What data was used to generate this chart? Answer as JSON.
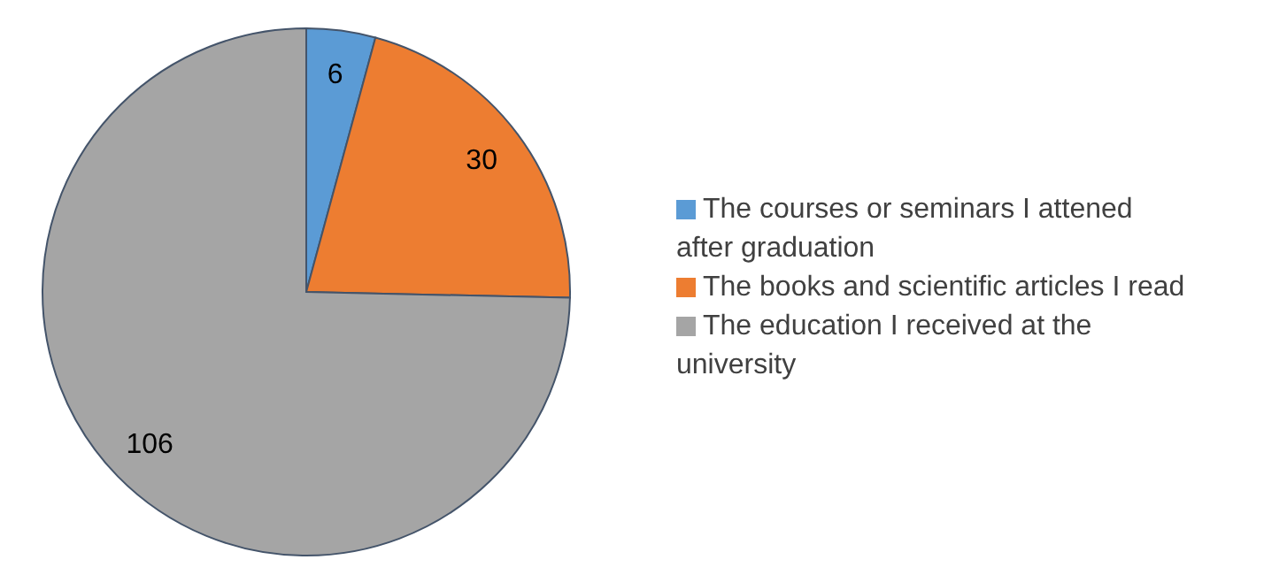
{
  "chart_data": {
    "type": "pie",
    "categories": [
      "The courses or seminars I attened after graduation",
      "The books and scientific articles I read",
      "The education I received at the university"
    ],
    "values": [
      6,
      30,
      106
    ],
    "colors": [
      "#5b9bd5",
      "#ed7d31",
      "#a5a5a5"
    ],
    "data_labels": true,
    "legend": "right"
  }
}
